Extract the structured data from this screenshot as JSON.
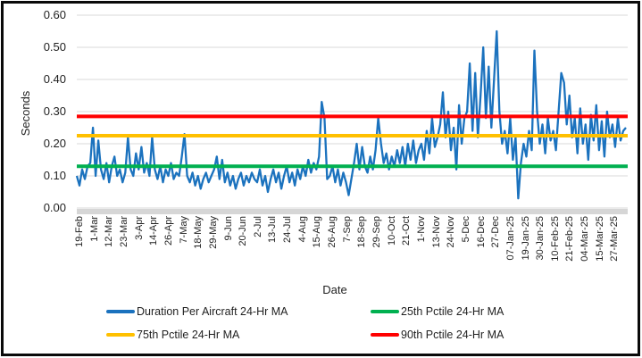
{
  "chart_data": {
    "type": "line",
    "title": "",
    "xlabel": "Date",
    "ylabel": "Seconds",
    "ylim": [
      0,
      0.6
    ],
    "grid": true,
    "legend_position": "bottom-two-columns",
    "y_ticks": [
      0,
      0.1,
      0.2,
      0.3,
      0.4,
      0.5,
      0.6
    ],
    "y_tick_labels": [
      "0.00",
      "0.10",
      "0.20",
      "0.30",
      "0.40",
      "0.50",
      "0.60"
    ],
    "x_tick_labels": [
      "19-Feb",
      "1-Mar",
      "12-Mar",
      "23-Mar",
      "3-Apr",
      "14-Apr",
      "26-Apr",
      "7-May",
      "18-May",
      "29-May",
      "9-Jun",
      "20-Jun",
      "2-Jul",
      "13-Jul",
      "24-Jul",
      "4-Aug",
      "15-Aug",
      "26-Aug",
      "7-Sep",
      "18-Sep",
      "29-Sep",
      "10-Oct",
      "21-Oct",
      "1-Nov",
      "13-Nov",
      "24-Nov",
      "5-Dec",
      "16-Dec",
      "27-Dec",
      "07-Jan-25",
      "19-Jan-25",
      "30-Jan-25",
      "10-Feb-25",
      "21-Feb-25",
      "04-Mar-25",
      "15-Mar-25",
      "27-Mar-25"
    ],
    "series": [
      {
        "name": "Duration Per Aircraft 24-Hr MA",
        "kind": "line",
        "color": "#1B72BE",
        "values": [
          0.1,
          0.07,
          0.12,
          0.09,
          0.13,
          0.14,
          0.25,
          0.1,
          0.21,
          0.12,
          0.09,
          0.14,
          0.08,
          0.13,
          0.16,
          0.1,
          0.12,
          0.08,
          0.11,
          0.22,
          0.12,
          0.1,
          0.17,
          0.12,
          0.19,
          0.11,
          0.14,
          0.1,
          0.22,
          0.12,
          0.09,
          0.13,
          0.08,
          0.12,
          0.1,
          0.14,
          0.09,
          0.11,
          0.1,
          0.16,
          0.23,
          0.1,
          0.08,
          0.11,
          0.07,
          0.1,
          0.06,
          0.09,
          0.11,
          0.08,
          0.1,
          0.12,
          0.16,
          0.09,
          0.15,
          0.08,
          0.11,
          0.07,
          0.1,
          0.06,
          0.09,
          0.11,
          0.07,
          0.1,
          0.08,
          0.11,
          0.09,
          0.08,
          0.12,
          0.07,
          0.1,
          0.05,
          0.09,
          0.12,
          0.08,
          0.11,
          0.06,
          0.1,
          0.13,
          0.08,
          0.11,
          0.07,
          0.12,
          0.09,
          0.13,
          0.1,
          0.15,
          0.11,
          0.14,
          0.12,
          0.16,
          0.33,
          0.28,
          0.09,
          0.1,
          0.13,
          0.08,
          0.12,
          0.07,
          0.11,
          0.08,
          0.04,
          0.09,
          0.14,
          0.2,
          0.12,
          0.19,
          0.13,
          0.11,
          0.16,
          0.12,
          0.18,
          0.28,
          0.2,
          0.14,
          0.17,
          0.12,
          0.16,
          0.13,
          0.18,
          0.14,
          0.19,
          0.13,
          0.2,
          0.15,
          0.21,
          0.14,
          0.18,
          0.2,
          0.15,
          0.24,
          0.17,
          0.28,
          0.19,
          0.22,
          0.26,
          0.36,
          0.22,
          0.3,
          0.18,
          0.25,
          0.12,
          0.32,
          0.2,
          0.28,
          0.3,
          0.45,
          0.24,
          0.42,
          0.22,
          0.35,
          0.5,
          0.28,
          0.44,
          0.25,
          0.4,
          0.55,
          0.3,
          0.2,
          0.24,
          0.17,
          0.28,
          0.15,
          0.22,
          0.03,
          0.14,
          0.2,
          0.16,
          0.24,
          0.18,
          0.49,
          0.3,
          0.2,
          0.26,
          0.17,
          0.28,
          0.21,
          0.24,
          0.18,
          0.3,
          0.42,
          0.39,
          0.26,
          0.35,
          0.22,
          0.28,
          0.17,
          0.31,
          0.2,
          0.26,
          0.15,
          0.29,
          0.21,
          0.32,
          0.18,
          0.27,
          0.16,
          0.3,
          0.22,
          0.26,
          0.19,
          0.28,
          0.21,
          0.24,
          0.25
        ]
      },
      {
        "name": "25th Pctile 24-Hr MA",
        "kind": "hline",
        "color": "#00B050",
        "value": 0.13
      },
      {
        "name": "75th Pctile 24-Hr MA",
        "kind": "hline",
        "color": "#FFC000",
        "value": 0.225
      },
      {
        "name": "90th Pctile 24-Hr MA",
        "kind": "hline",
        "color": "#FF0000",
        "value": 0.285
      }
    ]
  },
  "colors": {
    "gridline": "#D9D9D9",
    "axis_bar": "#D6D6D6",
    "text": "#1F1F1F",
    "frame_border": "#0A0A0A",
    "background": "#FFFFFF"
  }
}
